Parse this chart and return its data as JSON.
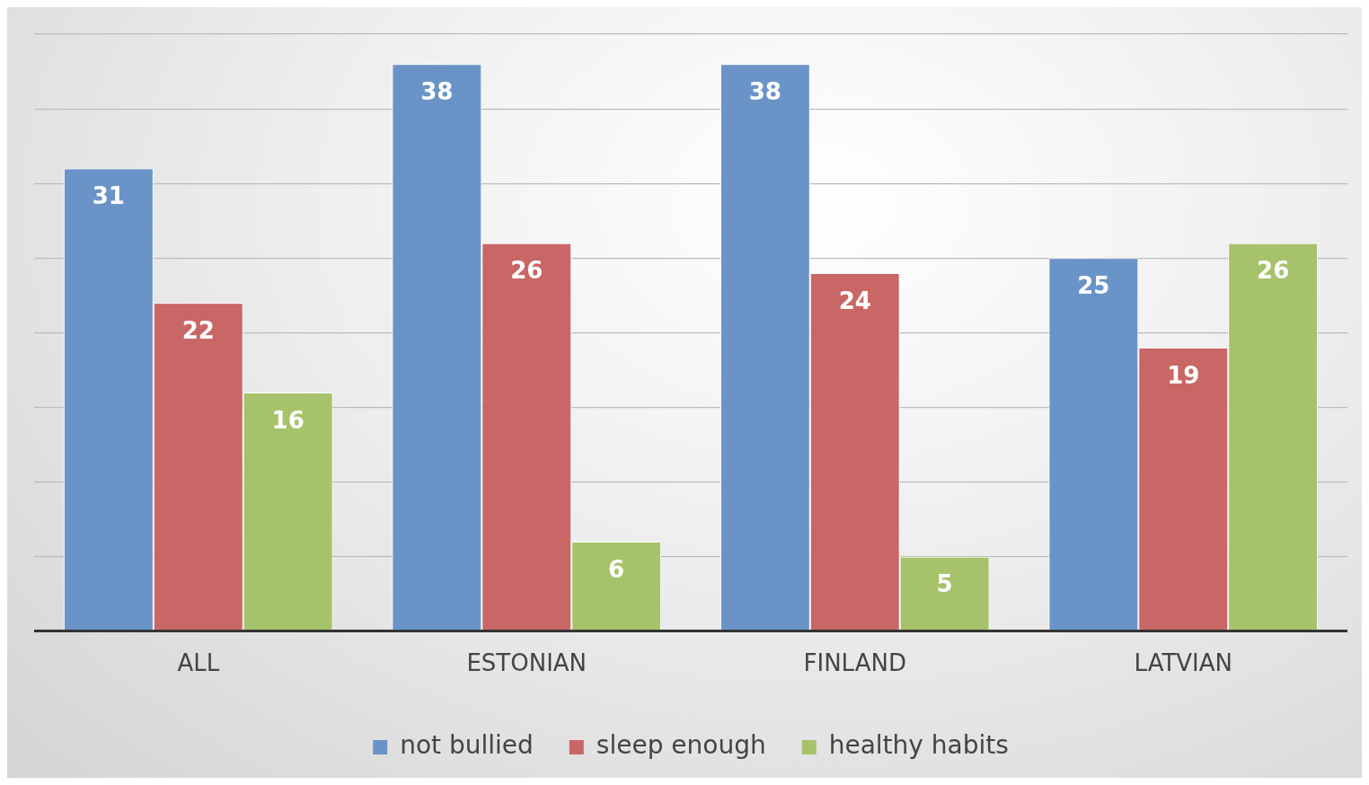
{
  "chart_data": {
    "type": "bar",
    "categories": [
      "ALL",
      "ESTONIAN",
      "FINLAND",
      "LATVIAN"
    ],
    "series": [
      {
        "name": "not bullied",
        "color": "#6a94c8",
        "values": [
          31,
          38,
          38,
          25
        ]
      },
      {
        "name": "sleep enough",
        "color": "#c96766",
        "values": [
          22,
          26,
          24,
          19
        ]
      },
      {
        "name": "healthy habits",
        "color": "#a6c36b",
        "values": [
          16,
          6,
          5,
          26
        ]
      }
    ],
    "ylim": [
      0,
      40
    ],
    "yticks": [
      {
        "value": 0,
        "label": null
      },
      {
        "value": 5,
        "label": null
      },
      {
        "value": 10,
        "label": null
      },
      {
        "value": 15,
        "label": null
      },
      {
        "value": 20,
        "label": null
      },
      {
        "value": 25,
        "label": null
      },
      {
        "value": 30,
        "label": null
      },
      {
        "value": 35,
        "label": null
      },
      {
        "value": 40,
        "label": null
      }
    ],
    "tick_labels": "x",
    "grid": "y",
    "legend": "bottom",
    "data_labels": true
  }
}
